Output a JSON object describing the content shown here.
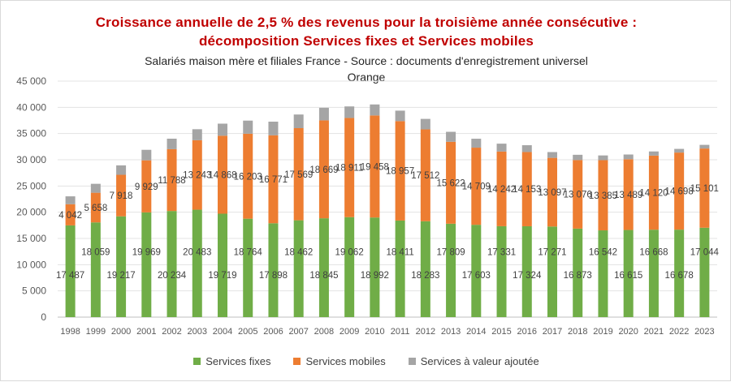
{
  "chart_data": {
    "type": "bar",
    "stacked": true,
    "title": "Croissance  annuelle  de 2,5 % des revenus pour la troisième année consécutive :",
    "title_line2": "décomposition  Services fixes et Services mobiles",
    "subtitle": "Salariés maison mère et filiales France - Source : documents d'enregistrement  universel",
    "subtitle2": "Orange",
    "xlabel": "",
    "ylabel": "",
    "ylim": [
      0,
      45000
    ],
    "yticks": [
      0,
      5000,
      10000,
      15000,
      20000,
      25000,
      30000,
      35000,
      40000,
      45000
    ],
    "ytick_labels": [
      "0",
      "5 000",
      "10 000",
      "15 000",
      "20 000",
      "25 000",
      "30 000",
      "35 000",
      "40 000",
      "45 000"
    ],
    "grid": true,
    "legend_position": "bottom",
    "categories": [
      "1998",
      "1999",
      "2000",
      "2001",
      "2002",
      "2003",
      "2004",
      "2005",
      "2006",
      "2007",
      "2008",
      "2009",
      "2010",
      "2011",
      "2012",
      "2013",
      "2014",
      "2015",
      "2016",
      "2017",
      "2018",
      "2019",
      "2020",
      "2021",
      "2022",
      "2023"
    ],
    "series": [
      {
        "name": "Services fixes",
        "color": "#70ad47",
        "values": [
          17487,
          18059,
          19217,
          19969,
          20234,
          20483,
          19719,
          18764,
          17898,
          18462,
          18845,
          19062,
          18992,
          18411,
          18283,
          17809,
          17603,
          17331,
          17324,
          17271,
          16873,
          16542,
          16615,
          16668,
          16678,
          17044
        ],
        "labels": [
          "17 487",
          "18 059",
          "19 217",
          "19 969",
          "20 234",
          "20 483",
          "19 719",
          "18 764",
          "17 898",
          "18 462",
          "18 845",
          "19 062",
          "18 992",
          "18 411",
          "18 283",
          "17 809",
          "17 603",
          "17 331",
          "17 324",
          "17 271",
          "16 873",
          "16 542",
          "16 615",
          "16 668",
          "16 678",
          "17 044"
        ]
      },
      {
        "name": "Services mobiles",
        "color": "#ed7d31",
        "values": [
          4042,
          5658,
          7918,
          9929,
          11788,
          13243,
          14868,
          16203,
          16771,
          17569,
          18669,
          18911,
          19458,
          18957,
          17512,
          15622,
          14709,
          14242,
          14153,
          13097,
          13076,
          13385,
          13489,
          14120,
          14698,
          15101
        ],
        "labels": [
          "4 042",
          "5 658",
          "7 918",
          "9 929",
          "11 788",
          "13 243",
          "14 868",
          "16 203",
          "16 771",
          "17 569",
          "18 669",
          "18 911",
          "19 458",
          "18 957",
          "17 512",
          "15 622",
          "14 709",
          "14 242",
          "14 153",
          "13 097",
          "13 076",
          "13 385",
          "13 489",
          "14 120",
          "14 698",
          "15 101"
        ]
      },
      {
        "name": "Services à valeur ajoutée",
        "color": "#a5a5a5",
        "values": [
          1500,
          1700,
          1800,
          2000,
          2000,
          2100,
          2300,
          2500,
          2600,
          2600,
          2400,
          2200,
          2100,
          2000,
          2000,
          1900,
          1700,
          1500,
          1300,
          1100,
          1000,
          900,
          900,
          800,
          700,
          700
        ]
      }
    ]
  }
}
